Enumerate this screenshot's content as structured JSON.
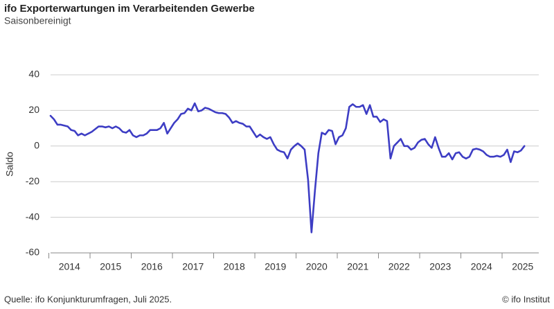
{
  "chart_data": {
    "type": "line",
    "title": "ifo Exporterwartungen im Verarbeitenden Gewerbe",
    "subtitle": "Saisonbereinigt",
    "y_label": "Saldo",
    "source": "Quelle: ifo Konjunkturumfragen, Juli 2025.",
    "credit": "© ifo Institut",
    "categories": [
      null,
      null,
      null,
      null,
      null,
      null,
      "2014",
      null,
      null,
      null,
      null,
      null,
      null,
      null,
      null,
      null,
      null,
      null,
      "2015",
      null,
      null,
      null,
      null,
      null,
      null,
      null,
      null,
      null,
      null,
      null,
      "2016",
      null,
      null,
      null,
      null,
      null,
      null,
      null,
      null,
      null,
      null,
      null,
      "2017",
      null,
      null,
      null,
      null,
      null,
      null,
      null,
      null,
      null,
      null,
      null,
      "2018",
      null,
      null,
      null,
      null,
      null,
      null,
      null,
      null,
      null,
      null,
      null,
      "2019",
      null,
      null,
      null,
      null,
      null,
      null,
      null,
      null,
      null,
      null,
      null,
      "2020",
      null,
      null,
      null,
      null,
      null,
      null,
      null,
      null,
      null,
      null,
      null,
      "2021",
      null,
      null,
      null,
      null,
      null,
      null,
      null,
      null,
      null,
      null,
      null,
      "2022",
      null,
      null,
      null,
      null,
      null,
      null,
      null,
      null,
      null,
      null,
      null,
      "2023",
      null,
      null,
      null,
      null,
      null,
      null,
      null,
      null,
      null,
      null,
      null,
      "2024",
      null,
      null,
      null,
      null,
      null,
      null,
      null,
      null,
      null,
      null,
      null,
      "2025"
    ],
    "values": [
      17,
      15,
      12,
      12,
      11.5,
      11,
      9,
      8.5,
      6,
      7,
      6,
      7,
      8,
      9.5,
      11,
      11,
      10.5,
      11,
      10,
      11,
      10,
      8,
      7.5,
      9,
      6,
      5,
      6,
      6,
      7,
      9,
      9,
      9,
      10,
      13,
      7,
      10,
      13,
      15,
      18,
      18.5,
      21,
      20,
      24,
      19.5,
      20,
      21.5,
      21,
      20,
      19,
      18.5,
      18.5,
      18,
      16,
      13,
      14,
      13,
      12.5,
      11,
      11,
      8,
      5,
      6.5,
      5,
      4,
      5,
      1,
      -2,
      -3,
      -3.5,
      -7,
      -2,
      0,
      1.5,
      0,
      -2,
      -19,
      -48.5,
      -25,
      -4,
      7.5,
      6.5,
      9,
      8.5,
      1,
      5,
      6,
      10,
      22,
      23.5,
      22,
      22,
      23,
      18,
      23,
      16.5,
      16.5,
      13.5,
      15,
      14,
      -7,
      0,
      2,
      4,
      0,
      0,
      -2,
      -1,
      2,
      3.5,
      4,
      1,
      -1,
      5,
      -1,
      -6,
      -6,
      -4,
      -7.5,
      -4,
      -3.5,
      -6,
      -7,
      -6,
      -2,
      -1.5,
      -2,
      -3,
      -5,
      -6,
      -6,
      -5.5,
      -6,
      -5,
      -2,
      -9,
      -3,
      -3.5,
      -2.5,
      0
    ],
    "color": "#3d3dc4",
    "ylim": [
      -60,
      40
    ],
    "yticks": [
      -60,
      -40,
      -20,
      0,
      20,
      40
    ],
    "grid": true
  }
}
